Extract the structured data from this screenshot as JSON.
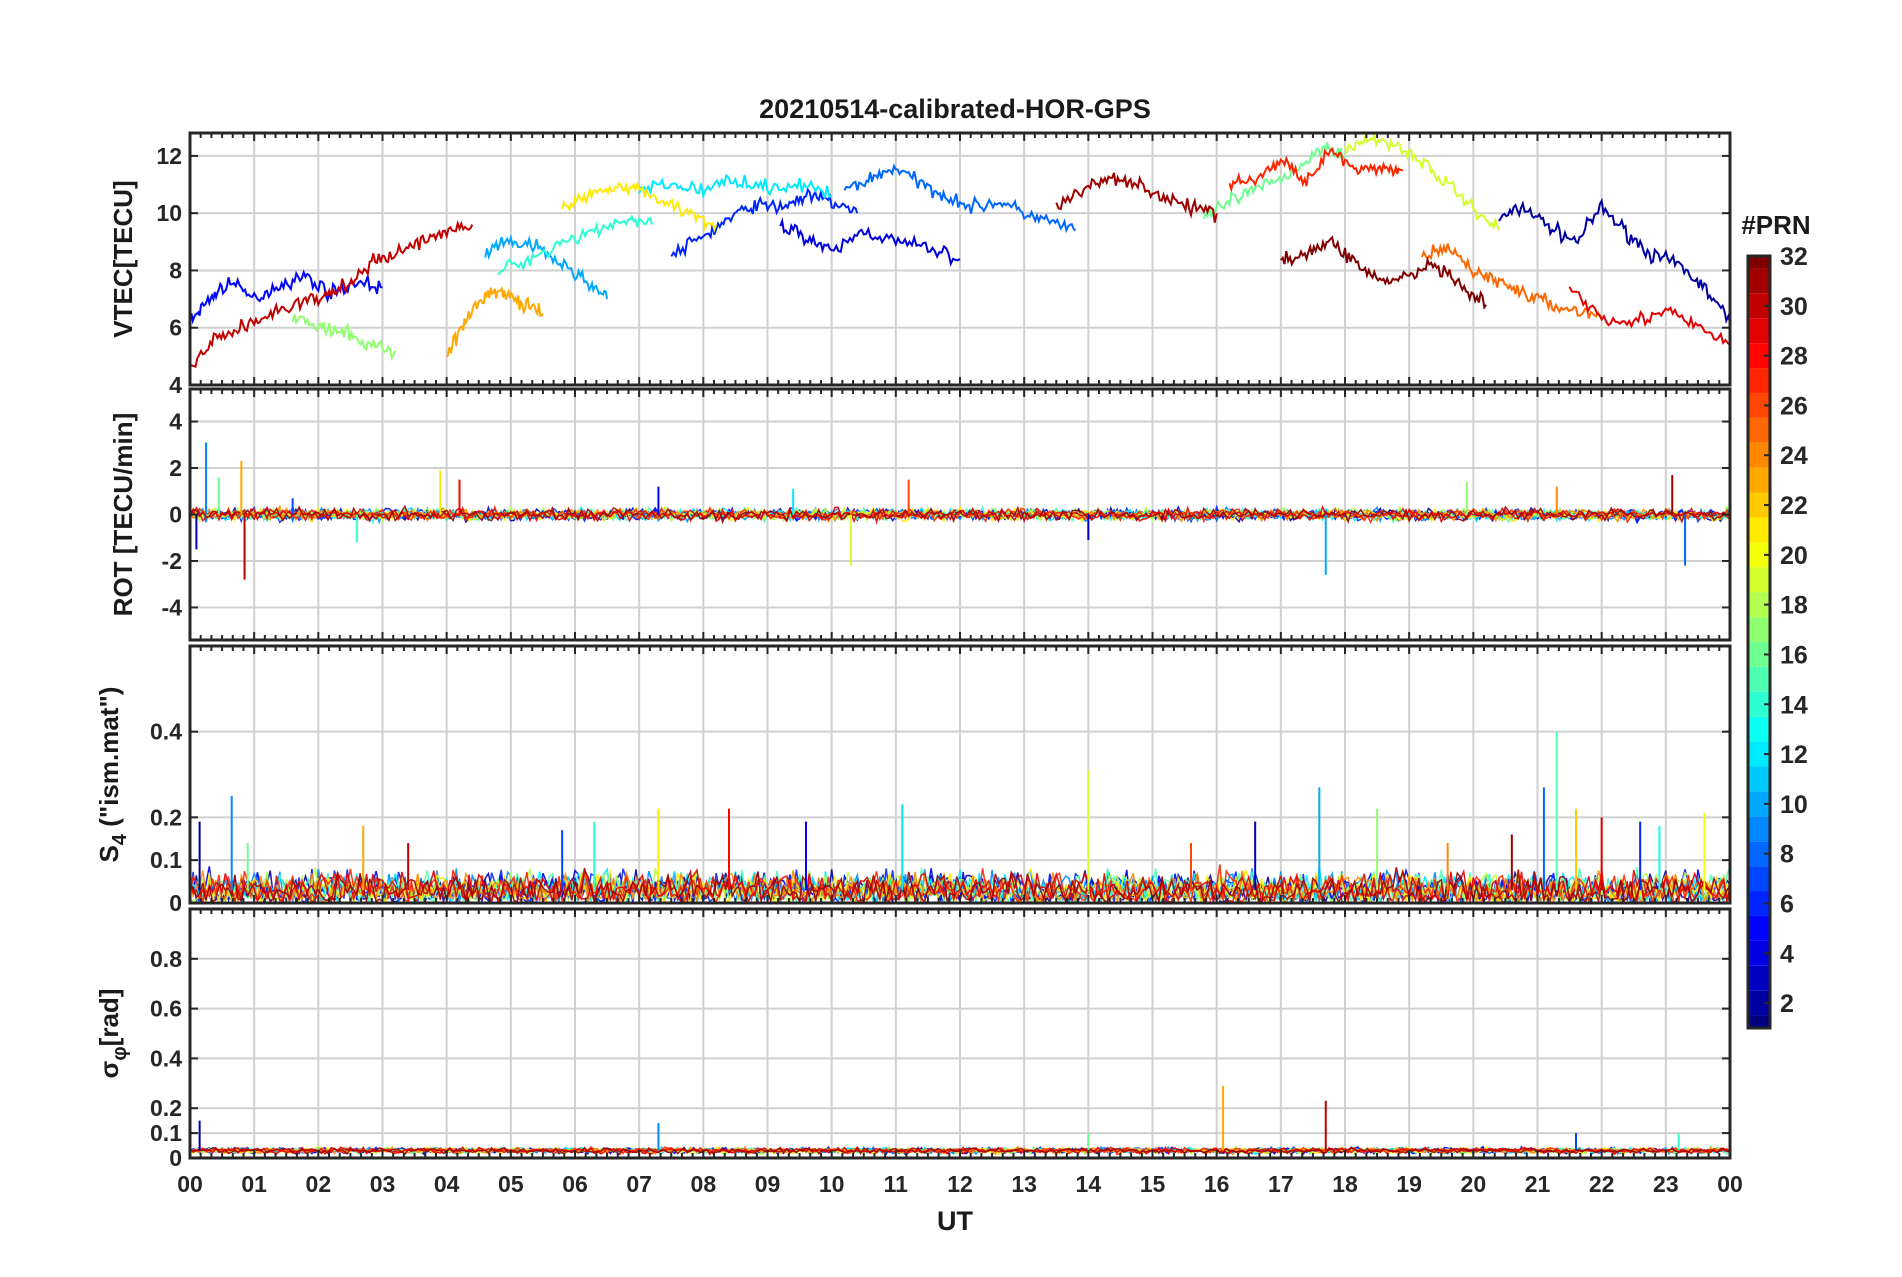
{
  "chart_data": {
    "type": "line",
    "title": "20210514-calibrated-HOR-GPS",
    "xlabel": "UT",
    "x_ticks": [
      "00",
      "01",
      "02",
      "03",
      "04",
      "05",
      "06",
      "07",
      "08",
      "09",
      "10",
      "11",
      "12",
      "13",
      "14",
      "15",
      "16",
      "17",
      "18",
      "19",
      "20",
      "21",
      "22",
      "23",
      "00"
    ],
    "x_range_hours": [
      0,
      24
    ],
    "grid": true,
    "panels": [
      {
        "id": "vtec",
        "ylabel": "VTEC[TECU]",
        "ylim": [
          4,
          12.8
        ],
        "y_ticks": [
          4,
          6,
          8,
          10,
          12
        ],
        "series": [
          {
            "name": "PRN 2",
            "prn": 2,
            "x": [
              20.4,
              20.8,
              21.2,
              21.6,
              22.0,
              22.4,
              22.8,
              23.2,
              23.6,
              24.0
            ],
            "y": [
              9.8,
              10.2,
              9.5,
              9.0,
              10.2,
              9.3,
              8.5,
              8.2,
              7.4,
              6.2
            ]
          },
          {
            "name": "PRN 4",
            "prn": 4,
            "x": [
              9.2,
              9.6,
              10.0,
              10.5,
              11.0,
              11.5,
              12.0
            ],
            "y": [
              9.6,
              9.2,
              8.6,
              9.4,
              9.0,
              8.8,
              8.4
            ]
          },
          {
            "name": "PRN 5",
            "prn": 5,
            "x": [
              0.0,
              0.3,
              0.6,
              1.0,
              1.4,
              1.8,
              2.2,
              2.6,
              3.0
            ],
            "y": [
              6.2,
              7.0,
              7.6,
              7.0,
              7.5,
              7.8,
              7.2,
              7.6,
              7.4
            ]
          },
          {
            "name": "PRN 6",
            "prn": 6,
            "x": [
              7.5,
              8.0,
              8.4,
              8.8,
              9.2,
              9.6,
              10.0,
              10.4
            ],
            "y": [
              8.5,
              9.2,
              9.8,
              10.3,
              10.2,
              10.6,
              10.4,
              10.0
            ]
          },
          {
            "name": "PRN 8",
            "prn": 8,
            "x": [
              10.2,
              10.6,
              11.0,
              11.4,
              11.8,
              12.2,
              12.6,
              13.0,
              13.4,
              13.8
            ],
            "y": [
              10.8,
              11.2,
              11.6,
              11.0,
              10.6,
              10.2,
              10.4,
              10.0,
              9.7,
              9.4
            ]
          },
          {
            "name": "PRN 10",
            "prn": 10,
            "x": [
              4.6,
              5.0,
              5.4,
              5.8,
              6.2,
              6.5
            ],
            "y": [
              8.6,
              9.0,
              8.8,
              8.2,
              7.6,
              7.0
            ]
          },
          {
            "name": "PRN 12",
            "prn": 12,
            "x": [
              7.0,
              7.5,
              8.0,
              8.5,
              9.0,
              9.5,
              10.0
            ],
            "y": [
              10.8,
              11.0,
              10.8,
              11.2,
              10.9,
              11.0,
              10.6
            ]
          },
          {
            "name": "PRN 14",
            "prn": 14,
            "x": [
              4.8,
              5.3,
              5.8,
              6.3,
              6.8,
              7.2
            ],
            "y": [
              8.0,
              8.4,
              9.0,
              9.4,
              9.8,
              9.6
            ]
          },
          {
            "name": "PRN 16",
            "prn": 16,
            "x": [
              15.8,
              16.2,
              16.6,
              17.0,
              17.4,
              17.7,
              18.0
            ],
            "y": [
              9.8,
              10.4,
              10.8,
              11.2,
              11.8,
              12.4,
              12.0
            ]
          },
          {
            "name": "PRN 17",
            "prn": 17,
            "x": [
              1.6,
              2.0,
              2.4,
              2.8,
              3.2
            ],
            "y": [
              6.4,
              6.0,
              5.8,
              5.4,
              5.2
            ]
          },
          {
            "name": "PRN 19",
            "prn": 19,
            "x": [
              18.0,
              18.4,
              18.8,
              19.2,
              19.6,
              20.0,
              20.4
            ],
            "y": [
              12.2,
              12.6,
              12.4,
              11.8,
              11.0,
              10.2,
              9.4
            ]
          },
          {
            "name": "PRN 21",
            "prn": 21,
            "x": [
              5.8,
              6.2,
              6.6,
              7.0,
              7.4,
              7.8,
              8.2
            ],
            "y": [
              10.2,
              10.6,
              11.0,
              10.8,
              10.4,
              10.0,
              9.6
            ]
          },
          {
            "name": "PRN 23",
            "prn": 23,
            "x": [
              4.0,
              4.3,
              4.6,
              4.9,
              5.2,
              5.5
            ],
            "y": [
              5.1,
              6.2,
              7.2,
              7.2,
              6.8,
              6.5
            ]
          },
          {
            "name": "PRN 25",
            "prn": 25,
            "x": [
              19.2,
              19.6,
              20.0,
              20.4,
              20.8,
              21.2,
              21.6,
              22.0
            ],
            "y": [
              8.4,
              8.8,
              8.0,
              7.6,
              7.2,
              6.8,
              6.6,
              6.4
            ]
          },
          {
            "name": "PRN 27",
            "prn": 27,
            "x": [
              16.2,
              16.6,
              17.0,
              17.4,
              17.8,
              18.2,
              18.6,
              18.9
            ],
            "y": [
              11.0,
              11.2,
              11.8,
              11.2,
              12.2,
              11.4,
              11.6,
              11.5
            ]
          },
          {
            "name": "PRN 29",
            "prn": 29,
            "x": [
              21.5,
              22.0,
              22.5,
              23.0,
              23.5,
              24.0
            ],
            "y": [
              7.4,
              6.4,
              6.2,
              6.6,
              6.0,
              5.4
            ]
          },
          {
            "name": "PRN 30",
            "prn": 30,
            "x": [
              0.0,
              0.4,
              0.8,
              1.2,
              1.6,
              2.0,
              2.4,
              2.8,
              3.2,
              3.6,
              4.0,
              4.4
            ],
            "y": [
              4.6,
              5.6,
              6.0,
              6.4,
              6.8,
              7.0,
              7.4,
              8.2,
              8.6,
              9.0,
              9.4,
              9.6
            ]
          },
          {
            "name": "PRN 31",
            "prn": 31,
            "x": [
              13.5,
              14.0,
              14.4,
              14.8,
              15.2,
              15.6,
              16.0
            ],
            "y": [
              10.2,
              10.9,
              11.3,
              11.0,
              10.5,
              10.2,
              10.0
            ]
          },
          {
            "name": "PRN 32",
            "prn": 32,
            "x": [
              17.0,
              17.4,
              17.8,
              18.2,
              18.6,
              19.0,
              19.4,
              19.8,
              20.2
            ],
            "y": [
              8.4,
              8.6,
              9.0,
              8.2,
              7.6,
              7.8,
              8.2,
              7.4,
              6.8
            ]
          }
        ]
      },
      {
        "id": "rot",
        "ylabel": "ROT [TECU/min]",
        "ylim": [
          -5.4,
          5.4
        ],
        "y_ticks": [
          -4,
          -2,
          0,
          2,
          4
        ],
        "series": [
          {
            "name": "ROT spikes",
            "x": [
              0.1,
              0.25,
              0.45,
              0.8,
              0.85,
              1.6,
              2.6,
              3.9,
              4.2,
              7.3,
              9.4,
              10.3,
              11.2,
              14.0,
              17.7,
              19.9,
              21.3,
              23.1,
              23.3
            ],
            "y": [
              -1.5,
              3.1,
              1.6,
              2.3,
              -2.8,
              0.7,
              -1.2,
              1.9,
              1.5,
              1.2,
              1.1,
              -2.2,
              1.5,
              -1.1,
              -2.6,
              1.4,
              1.2,
              1.7,
              -2.2
            ]
          }
        ]
      },
      {
        "id": "s4",
        "ylabel": "S4 (\"ism.mat\")",
        "ylabel_main": "S",
        "ylabel_sub": "4",
        "ylabel_rest": " (\"ism.mat\")",
        "ylim": [
          0,
          0.6
        ],
        "y_ticks": [
          0,
          0.1,
          0.2,
          0.4
        ],
        "series": [
          {
            "name": "S4 peaks",
            "x": [
              0.15,
              0.65,
              0.9,
              2.7,
              3.4,
              5.8,
              6.3,
              7.3,
              8.4,
              9.6,
              11.1,
              14.0,
              15.6,
              16.6,
              17.6,
              18.5,
              19.6,
              20.6,
              21.1,
              21.3,
              21.6,
              22.0,
              22.6,
              22.9,
              23.6
            ],
            "y": [
              0.19,
              0.25,
              0.14,
              0.18,
              0.14,
              0.17,
              0.19,
              0.22,
              0.22,
              0.19,
              0.23,
              0.31,
              0.14,
              0.19,
              0.27,
              0.22,
              0.14,
              0.16,
              0.27,
              0.4,
              0.22,
              0.2,
              0.19,
              0.18,
              0.21
            ]
          }
        ]
      },
      {
        "id": "sigma_phi",
        "ylabel": "σφ[rad]",
        "ylabel_main": "σ",
        "ylabel_sub": "φ",
        "ylabel_rest": "[rad]",
        "ylim": [
          0,
          1
        ],
        "y_ticks": [
          0,
          0.1,
          0.2,
          0.4,
          0.6,
          0.8
        ],
        "series": [
          {
            "name": "sigma_phi peaks",
            "x": [
              0.15,
              7.3,
              14.0,
              16.1,
              17.7,
              21.6,
              23.2
            ],
            "y": [
              0.15,
              0.14,
              0.1,
              0.29,
              0.23,
              0.1,
              0.1
            ]
          }
        ]
      }
    ],
    "colorbar": {
      "label": "#PRN",
      "range": [
        1,
        32
      ],
      "ticks": [
        2,
        4,
        6,
        8,
        10,
        12,
        14,
        16,
        18,
        20,
        22,
        24,
        26,
        28,
        30,
        32
      ],
      "colormap": "jet"
    }
  }
}
